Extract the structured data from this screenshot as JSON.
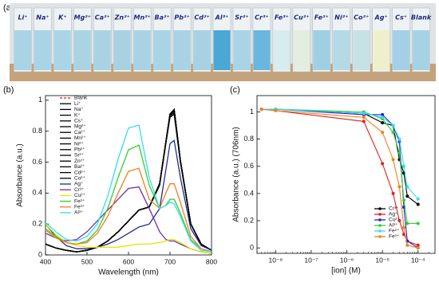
{
  "photo": {
    "label": "(a)",
    "vials": [
      {
        "label": "Li⁺",
        "color": "#a9d4e6"
      },
      {
        "label": "Na⁺",
        "color": "#a9d4e6"
      },
      {
        "label": "K⁺",
        "color": "#aad5e6"
      },
      {
        "label": "Mg²⁺",
        "color": "#aad4e4"
      },
      {
        "label": "Ca²⁺",
        "color": "#a9d3e3"
      },
      {
        "label": "Zn²⁺",
        "color": "#a8d2e2"
      },
      {
        "label": "Mn²⁺",
        "color": "#a9d3e4"
      },
      {
        "label": "Ba²⁺",
        "color": "#a9d4e5"
      },
      {
        "label": "Pb²⁺",
        "color": "#a8d3e5"
      },
      {
        "label": "Cd²⁺",
        "color": "#a6d2e4"
      },
      {
        "label": "Al³⁺",
        "color": "#4aa7d6"
      },
      {
        "label": "Sr²⁺",
        "color": "#a8d4e6"
      },
      {
        "label": "Cr³⁺",
        "color": "#6bb6dc"
      },
      {
        "label": "Fe³⁺",
        "color": "#d7ecec"
      },
      {
        "label": "Cu²⁺",
        "color": "#e4eee0"
      },
      {
        "label": "Fe²⁺",
        "color": "#9fcfe2"
      },
      {
        "label": "Ni²⁺",
        "color": "#b4dae6"
      },
      {
        "label": "Co²⁺",
        "color": "#c6e2e4"
      },
      {
        "label": "Ag⁺",
        "color": "#eef0cc"
      },
      {
        "label": "Cs⁺",
        "color": "#a3d0e6"
      },
      {
        "label": "Blank",
        "color": "#a6d2e6"
      }
    ]
  },
  "chart_data": [
    {
      "type": "line",
      "label": "(b)",
      "x_label": "Wavelength (nm)",
      "y_label": "Absorbance (a.u.)",
      "x": [
        400,
        425,
        450,
        475,
        500,
        525,
        550,
        575,
        600,
        625,
        650,
        675,
        690,
        700,
        710,
        725,
        750,
        775,
        800
      ],
      "xlim": [
        400,
        800
      ],
      "xticks": [
        400,
        500,
        600,
        700,
        800
      ],
      "ylim": [
        0,
        1.03
      ],
      "yticks": [
        0,
        0.2,
        0.4,
        0.6,
        0.8,
        1
      ],
      "x_scale": "linear",
      "markers": false,
      "legend": "upper-left",
      "series": [
        {
          "name": "Blank",
          "color": "#b02020",
          "line_style": "dashed",
          "values": [
            0.07,
            0.045,
            0.03,
            0.02,
            0.03,
            0.05,
            0.09,
            0.15,
            0.22,
            0.29,
            0.31,
            0.45,
            0.72,
            0.9,
            0.92,
            0.6,
            0.2,
            0.07,
            0.03
          ]
        },
        {
          "name": "Li⁺",
          "color": "#000000",
          "values": [
            0.07,
            0.045,
            0.03,
            0.02,
            0.03,
            0.05,
            0.09,
            0.15,
            0.22,
            0.29,
            0.31,
            0.46,
            0.73,
            0.91,
            0.94,
            0.61,
            0.2,
            0.07,
            0.03
          ]
        },
        {
          "name": "Na⁺",
          "color": "#000000",
          "values": [
            0.07,
            0.045,
            0.03,
            0.02,
            0.03,
            0.05,
            0.09,
            0.15,
            0.22,
            0.29,
            0.31,
            0.46,
            0.73,
            0.91,
            0.93,
            0.61,
            0.2,
            0.07,
            0.03
          ]
        },
        {
          "name": "K⁺",
          "color": "#000000",
          "values": [
            0.07,
            0.045,
            0.03,
            0.02,
            0.03,
            0.05,
            0.09,
            0.15,
            0.22,
            0.29,
            0.31,
            0.46,
            0.73,
            0.91,
            0.94,
            0.61,
            0.2,
            0.07,
            0.03
          ]
        },
        {
          "name": "Cs⁺",
          "color": "#000000",
          "values": [
            0.07,
            0.045,
            0.03,
            0.02,
            0.03,
            0.05,
            0.09,
            0.15,
            0.22,
            0.29,
            0.31,
            0.46,
            0.73,
            0.91,
            0.93,
            0.61,
            0.2,
            0.07,
            0.03
          ]
        },
        {
          "name": "Mg²⁺",
          "color": "#000000",
          "values": [
            0.07,
            0.045,
            0.03,
            0.02,
            0.03,
            0.05,
            0.09,
            0.15,
            0.22,
            0.29,
            0.31,
            0.46,
            0.73,
            0.91,
            0.94,
            0.61,
            0.2,
            0.07,
            0.03
          ]
        },
        {
          "name": "Ca²⁺",
          "color": "#000000",
          "values": [
            0.07,
            0.045,
            0.03,
            0.02,
            0.03,
            0.05,
            0.09,
            0.15,
            0.22,
            0.29,
            0.31,
            0.46,
            0.73,
            0.91,
            0.93,
            0.61,
            0.2,
            0.07,
            0.03
          ]
        },
        {
          "name": "Mn²⁺",
          "color": "#000000",
          "values": [
            0.07,
            0.045,
            0.03,
            0.02,
            0.03,
            0.05,
            0.09,
            0.15,
            0.22,
            0.29,
            0.31,
            0.46,
            0.73,
            0.91,
            0.94,
            0.61,
            0.2,
            0.07,
            0.03
          ]
        },
        {
          "name": "Ni²⁺",
          "color": "#000000",
          "values": [
            0.07,
            0.045,
            0.03,
            0.02,
            0.03,
            0.05,
            0.09,
            0.15,
            0.22,
            0.29,
            0.31,
            0.46,
            0.73,
            0.9,
            0.92,
            0.6,
            0.2,
            0.07,
            0.03
          ]
        },
        {
          "name": "Pb²⁺",
          "color": "#000000",
          "values": [
            0.07,
            0.045,
            0.03,
            0.02,
            0.03,
            0.05,
            0.09,
            0.15,
            0.22,
            0.29,
            0.31,
            0.46,
            0.73,
            0.91,
            0.94,
            0.61,
            0.2,
            0.07,
            0.03
          ]
        },
        {
          "name": "Sr²⁺",
          "color": "#000000",
          "values": [
            0.07,
            0.045,
            0.03,
            0.02,
            0.03,
            0.05,
            0.09,
            0.15,
            0.22,
            0.29,
            0.31,
            0.46,
            0.73,
            0.91,
            0.93,
            0.61,
            0.2,
            0.07,
            0.03
          ]
        },
        {
          "name": "Zn²⁺",
          "color": "#000000",
          "values": [
            0.07,
            0.045,
            0.03,
            0.02,
            0.03,
            0.05,
            0.09,
            0.15,
            0.22,
            0.29,
            0.31,
            0.46,
            0.73,
            0.91,
            0.94,
            0.61,
            0.2,
            0.07,
            0.03
          ]
        },
        {
          "name": "Ba²⁺",
          "color": "#000000",
          "values": [
            0.07,
            0.045,
            0.03,
            0.02,
            0.03,
            0.05,
            0.09,
            0.15,
            0.22,
            0.29,
            0.31,
            0.46,
            0.73,
            0.91,
            0.93,
            0.61,
            0.2,
            0.07,
            0.03
          ]
        },
        {
          "name": "Cd²⁺",
          "color": "#000000",
          "values": [
            0.07,
            0.045,
            0.03,
            0.02,
            0.03,
            0.05,
            0.09,
            0.15,
            0.22,
            0.29,
            0.31,
            0.46,
            0.73,
            0.91,
            0.94,
            0.61,
            0.2,
            0.07,
            0.03
          ]
        },
        {
          "name": "Co²⁺",
          "color": "#000000",
          "values": [
            0.07,
            0.045,
            0.03,
            0.02,
            0.03,
            0.05,
            0.09,
            0.15,
            0.22,
            0.29,
            0.31,
            0.45,
            0.72,
            0.89,
            0.91,
            0.6,
            0.2,
            0.07,
            0.03
          ]
        },
        {
          "name": "Ag⁺",
          "color": "#1f2a8a",
          "values": [
            0.2,
            0.12,
            0.06,
            0.04,
            0.04,
            0.05,
            0.07,
            0.1,
            0.14,
            0.18,
            0.2,
            0.3,
            0.55,
            0.72,
            0.74,
            0.5,
            0.17,
            0.06,
            0.03
          ]
        },
        {
          "name": "Cr³⁺",
          "color": "#7030a0",
          "values": [
            0.14,
            0.11,
            0.09,
            0.1,
            0.15,
            0.22,
            0.29,
            0.36,
            0.43,
            0.44,
            0.3,
            0.15,
            0.1,
            0.09,
            0.09,
            0.07,
            0.04,
            0.02,
            0.01
          ]
        },
        {
          "name": "Cu²⁺",
          "color": "#e6e600",
          "values": [
            0.2,
            0.13,
            0.08,
            0.06,
            0.05,
            0.05,
            0.05,
            0.05,
            0.06,
            0.07,
            0.07,
            0.08,
            0.09,
            0.1,
            0.1,
            0.08,
            0.04,
            0.02,
            0.01
          ]
        },
        {
          "name": "Fe²⁺",
          "color": "#33cc33",
          "values": [
            0.17,
            0.12,
            0.08,
            0.07,
            0.09,
            0.16,
            0.3,
            0.5,
            0.68,
            0.71,
            0.45,
            0.3,
            0.32,
            0.36,
            0.36,
            0.27,
            0.1,
            0.04,
            0.02
          ]
        },
        {
          "name": "Fe³⁺",
          "color": "#f08020",
          "values": [
            0.16,
            0.11,
            0.08,
            0.07,
            0.08,
            0.14,
            0.25,
            0.4,
            0.54,
            0.56,
            0.36,
            0.3,
            0.4,
            0.46,
            0.46,
            0.34,
            0.12,
            0.04,
            0.02
          ]
        },
        {
          "name": "Al³⁺",
          "color": "#33ddee",
          "values": [
            0.21,
            0.15,
            0.1,
            0.09,
            0.12,
            0.2,
            0.38,
            0.62,
            0.82,
            0.84,
            0.5,
            0.3,
            0.32,
            0.34,
            0.33,
            0.25,
            0.09,
            0.03,
            0.02
          ]
        }
      ]
    },
    {
      "type": "line",
      "label": "(c)",
      "x_label": "[ion] (M)",
      "y_label": "Absorbance (a.u.) (706nm)",
      "x": [
        4e-09,
        1e-08,
        3e-06,
        1e-05,
        2e-05,
        3e-05,
        4e-05,
        5e-05,
        0.0001
      ],
      "xlim": [
        3e-09,
        0.0003
      ],
      "xticks": [
        {
          "value": 1e-08,
          "label": "10⁻⁸"
        },
        {
          "value": 1e-07,
          "label": "10⁻⁷"
        },
        {
          "value": 1e-06,
          "label": "10⁻⁶"
        },
        {
          "value": 1e-05,
          "label": "10⁻⁵"
        },
        {
          "value": 0.0001,
          "label": "10⁻⁴"
        }
      ],
      "ylim": [
        -0.04,
        1.12
      ],
      "yticks": [
        0,
        0.2,
        0.4,
        0.6,
        0.8,
        1
      ],
      "x_scale": "log",
      "markers": true,
      "legend": "center-right",
      "series": [
        {
          "name": "Cr³⁺",
          "color": "#000000",
          "values": [
            1.02,
            1.02,
            0.99,
            0.92,
            0.9,
            0.65,
            0.55,
            0.38,
            0.32
          ]
        },
        {
          "name": "Ag⁺",
          "color": "#e02020",
          "values": [
            1.02,
            1.01,
            0.93,
            0.62,
            0.4,
            0.2,
            0.1,
            0.05,
            0.02
          ]
        },
        {
          "name": "Cu²⁺",
          "color": "#2020d0",
          "values": [
            1.02,
            1.02,
            0.98,
            0.98,
            0.9,
            0.78,
            0.3,
            0.05,
            0
          ]
        },
        {
          "name": "Al³⁺",
          "color": "#33cc33",
          "values": [
            1.02,
            1.02,
            1,
            0.95,
            0.85,
            0.7,
            0.35,
            0.18,
            0.18
          ]
        },
        {
          "name": "Fe²⁺",
          "color": "#33ddee",
          "values": [
            1.02,
            1.02,
            0.99,
            0.96,
            0.9,
            0.8,
            0.6,
            0.45,
            0.36
          ]
        },
        {
          "name": "Fe³⁺",
          "color": "#f08020",
          "values": [
            1.02,
            1.01,
            0.96,
            0.85,
            0.65,
            0.45,
            0.15,
            0.02,
            0
          ]
        }
      ]
    }
  ]
}
